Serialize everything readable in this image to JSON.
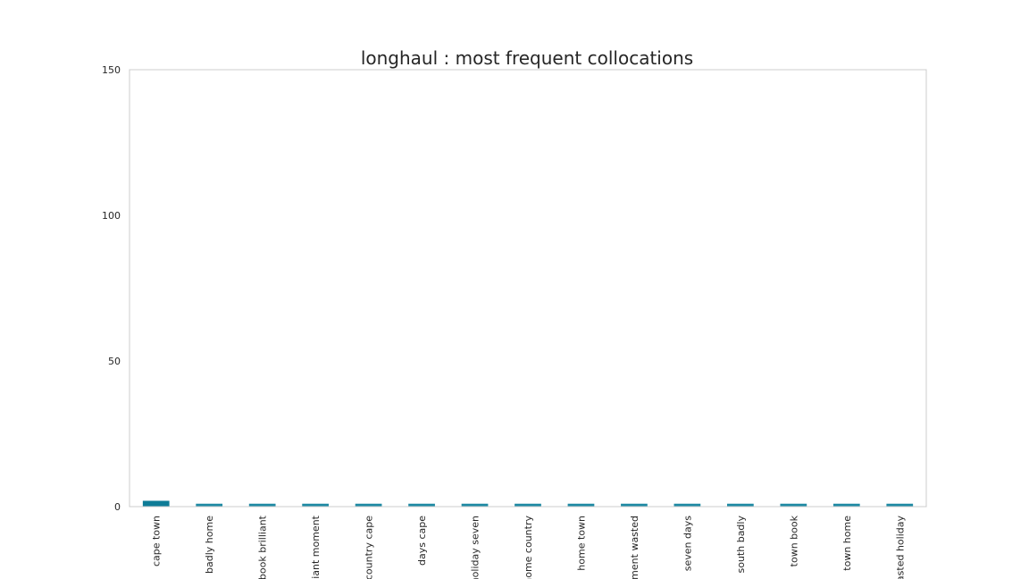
{
  "chart_data": {
    "type": "bar",
    "title": "longhaul : most frequent collocations",
    "xlabel": "",
    "ylabel": "",
    "categories": [
      "cape town",
      "badly home",
      "book brilliant",
      "brilliant moment",
      "country cape",
      "days cape",
      "holiday seven",
      "home country",
      "home town",
      "moment wasted",
      "seven days",
      "south badly",
      "town book",
      "town home",
      "wasted holiday"
    ],
    "values": [
      2,
      1,
      1,
      1,
      1,
      1,
      1,
      1,
      1,
      1,
      1,
      1,
      1,
      1,
      1
    ],
    "ylim": [
      0,
      150
    ],
    "yticks": [
      0,
      50,
      100,
      150
    ],
    "grid": false,
    "legend": "none",
    "colors": {
      "first_bar": "#0e7c97",
      "other_bars": "#1f8aa3",
      "frame": "#cccccc",
      "text": "#262626"
    }
  }
}
